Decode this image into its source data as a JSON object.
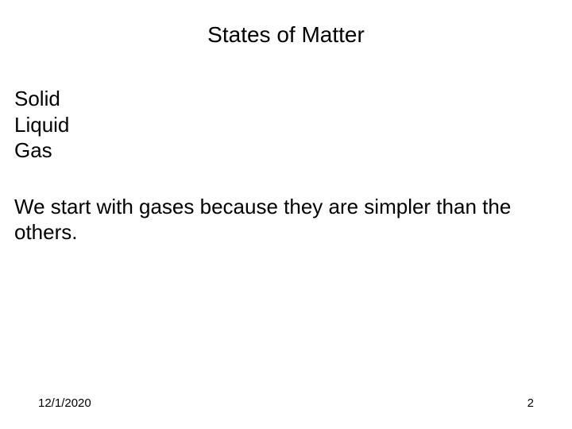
{
  "slide": {
    "title": "States of Matter",
    "items": [
      "Solid",
      "Liquid",
      "Gas"
    ],
    "paragraph": "We start with gases because they are simpler than the others.",
    "footer": {
      "date": "12/1/2020",
      "page_number": "2"
    }
  },
  "style": {
    "background_color": "#ffffff",
    "text_color": "#000000",
    "title_fontsize": 28,
    "body_fontsize": 26,
    "footer_fontsize": 15,
    "font_family": "Arial"
  }
}
